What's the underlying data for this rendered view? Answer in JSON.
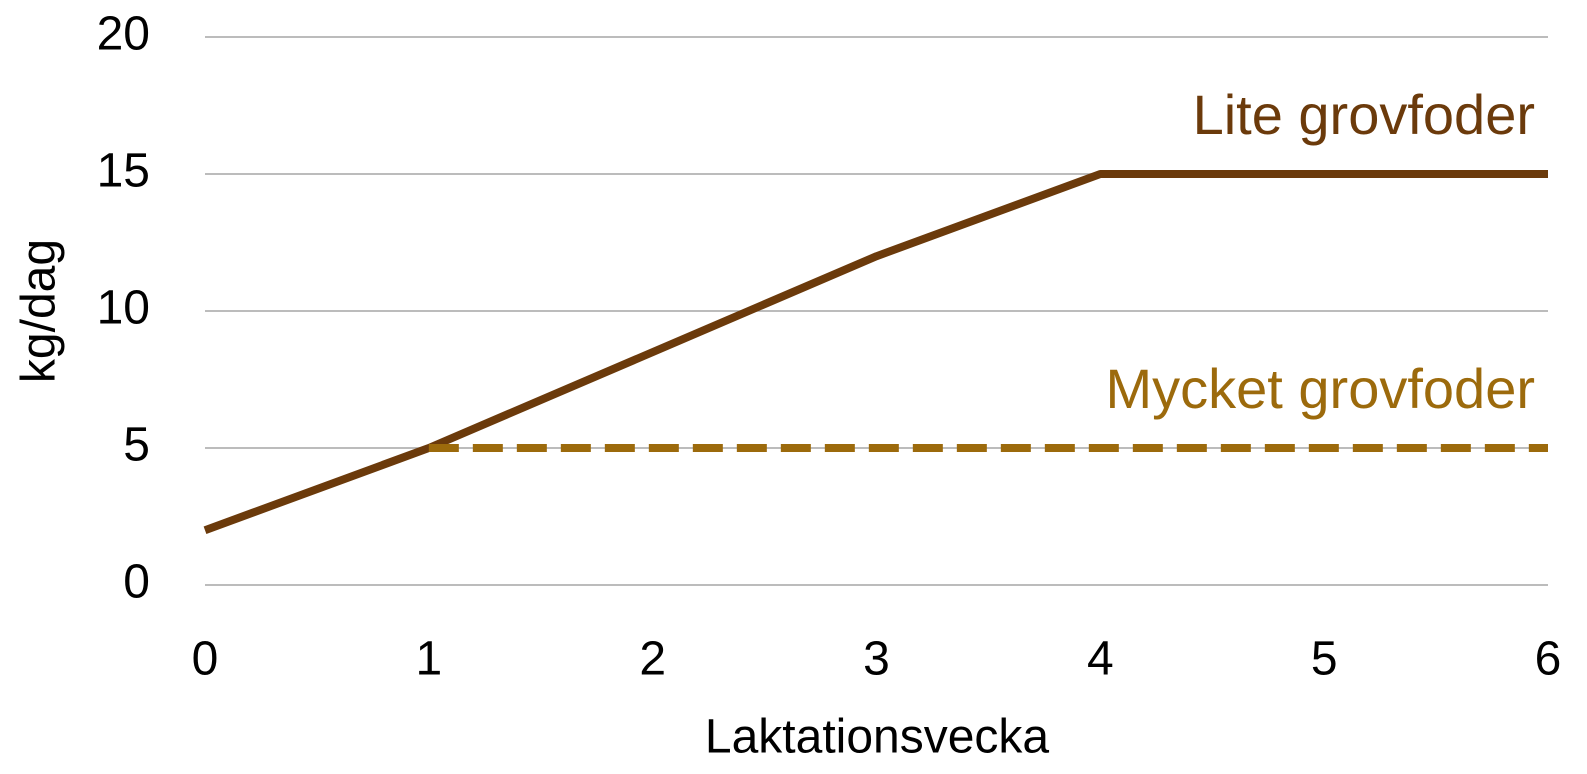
{
  "chart_data": {
    "type": "line",
    "xlabel": "Laktationsvecka",
    "ylabel": "kg/dag",
    "series": [
      {
        "name": "Lite grovfoder",
        "color": "#6b3a0b",
        "dash": false,
        "x": [
          0,
          1,
          3,
          4,
          6
        ],
        "values": [
          2,
          5,
          12,
          15,
          15
        ]
      },
      {
        "name": "Mycket grovfoder",
        "color": "#9c6a0c",
        "dash": true,
        "x": [
          1,
          6
        ],
        "values": [
          5,
          5
        ]
      }
    ],
    "xlim": [
      0,
      6
    ],
    "xticks": [
      0,
      1,
      2,
      3,
      4,
      5,
      6
    ],
    "ylim": [
      0,
      20
    ],
    "yticks": [
      0,
      5,
      10,
      15,
      20
    ],
    "grid": true
  }
}
